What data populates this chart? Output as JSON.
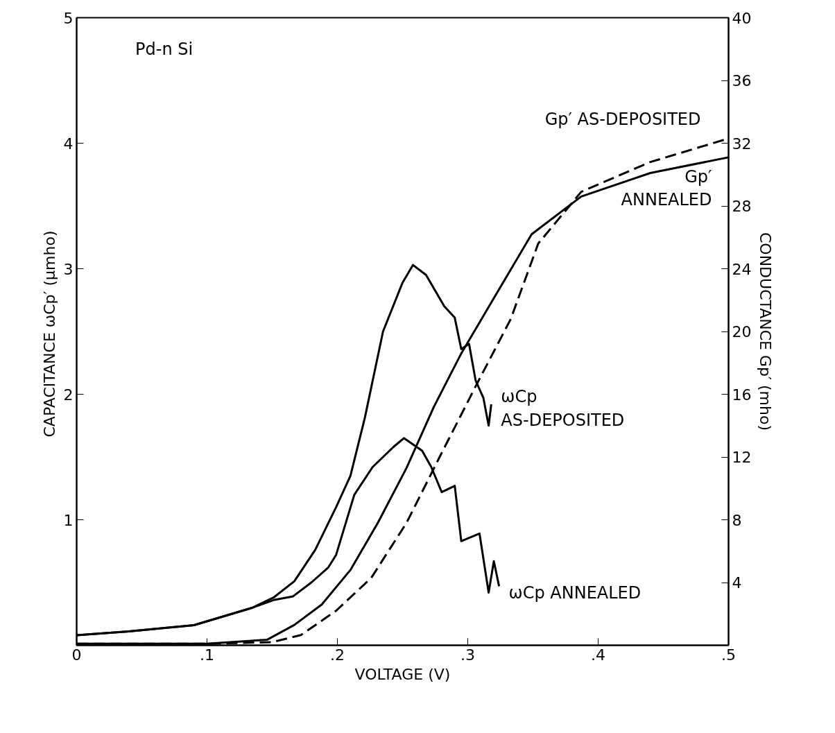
{
  "chart_data": {
    "type": "line",
    "xlabel": "VOLTAGE (V)",
    "ylabel": "CAPACITANCE  ωCp′ (μmho)",
    "y2label": "CONDUCTANCE Gp′ (mho)",
    "xlim": [
      0,
      0.5
    ],
    "xticks": [
      0,
      {
        "value": 0.1,
        "label": ".1"
      },
      {
        "value": 0.2,
        "label": ".2"
      },
      {
        "value": 0.3,
        "label": ".3"
      },
      {
        "value": 0.4,
        "label": ".4"
      },
      {
        "value": 0.5,
        "label": ".5"
      }
    ],
    "ylim": [
      0,
      5
    ],
    "yticks": [
      1,
      2,
      3,
      4,
      5
    ],
    "y2lim": [
      0,
      40
    ],
    "y2ticks": [
      4,
      8,
      12,
      16,
      20,
      24,
      28,
      32,
      36,
      40
    ],
    "grid": false,
    "legend": false,
    "marker": "none",
    "series": [
      {
        "name": "ωCp\nAS-DEPOSITED",
        "color": "#000000",
        "line_style": "solid",
        "x": [
          0,
          0.04,
          0.09,
          0.135,
          0.151,
          0.167,
          0.183,
          0.199,
          0.21,
          0.221,
          0.235,
          0.25,
          0.258,
          0.268,
          0.282,
          0.29,
          0.295,
          0.301,
          0.306,
          0.312,
          0.316,
          0.318
        ],
        "values": [
          0.08,
          0.11,
          0.16,
          0.3,
          0.38,
          0.51,
          0.76,
          1.1,
          1.35,
          1.81,
          2.5,
          2.89,
          3.03,
          2.95,
          2.7,
          2.61,
          2.36,
          2.4,
          2.11,
          1.97,
          1.75,
          1.92
        ]
      },
      {
        "name": "ωCp ANNEALED",
        "color": "#000000",
        "line_style": "solid",
        "x": [
          0,
          0.04,
          0.09,
          0.135,
          0.151,
          0.166,
          0.18,
          0.193,
          0.199,
          0.213,
          0.227,
          0.243,
          0.251,
          0.265,
          0.272,
          0.28,
          0.29,
          0.295,
          0.309,
          0.316,
          0.32,
          0.324
        ],
        "values": [
          0.08,
          0.11,
          0.16,
          0.3,
          0.36,
          0.39,
          0.5,
          0.62,
          0.72,
          1.2,
          1.42,
          1.58,
          1.65,
          1.55,
          1.42,
          1.22,
          1.27,
          0.83,
          0.89,
          0.42,
          0.67,
          0.47
        ]
      },
      {
        "name": "Gp′\nANNEALED",
        "color": "#000000",
        "line_style": "solid",
        "axis": "y2",
        "x": [
          0,
          0.1,
          0.146,
          0.167,
          0.188,
          0.21,
          0.231,
          0.253,
          0.274,
          0.295,
          0.317,
          0.349,
          0.387,
          0.44,
          0.5
        ],
        "values": [
          0.1,
          0.1,
          0.35,
          1.3,
          2.6,
          4.8,
          7.8,
          11.3,
          15.2,
          18.6,
          21.7,
          26.2,
          28.6,
          30.1,
          31.1
        ]
      },
      {
        "name": "Gp′ AS-DEPOSITED",
        "color": "#000000",
        "line_style": "dashed",
        "axis": "y2",
        "x": [
          0,
          0.1,
          0.15,
          0.172,
          0.199,
          0.226,
          0.253,
          0.279,
          0.306,
          0.333,
          0.354,
          0.387,
          0.44,
          0.5
        ],
        "values": [
          0.1,
          0.1,
          0.2,
          0.65,
          2.2,
          4.3,
          7.8,
          12.1,
          16.5,
          20.8,
          25.6,
          28.9,
          30.8,
          32.3
        ]
      }
    ],
    "annotations": [
      "Pd-n Si"
    ]
  }
}
